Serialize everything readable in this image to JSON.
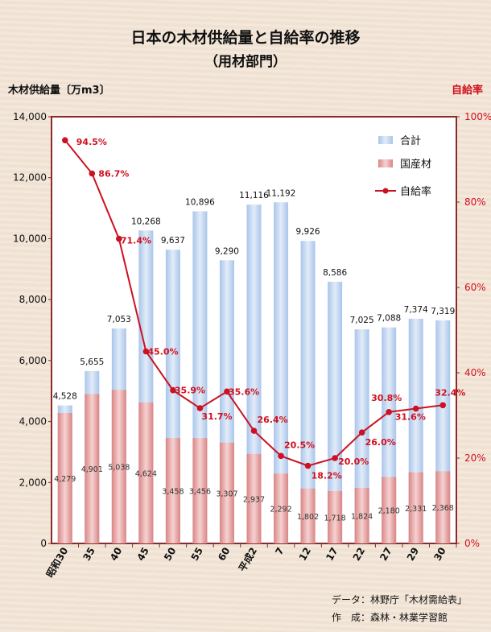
{
  "title_line1": "日本の木材供給量と自給率の推移",
  "title_line2": "（用材部門）",
  "left_axis_title": "木材供給量〔万m3〕",
  "right_axis_title": "自給率",
  "source_line1": "データ：林野庁「木材需給表」",
  "source_line2": "作　成：森林・林業学習館",
  "colors": {
    "total": "#bcd3ee",
    "domestic": "#e9a6a6",
    "rate": "#cc1122",
    "frame": "#8a2a2a"
  },
  "chart_data": {
    "type": "bar",
    "categories": [
      "昭和30",
      "35",
      "40",
      "45",
      "50",
      "55",
      "60",
      "平成2",
      "7",
      "12",
      "17",
      "22",
      "27",
      "29",
      "30"
    ],
    "series": [
      {
        "name": "合計",
        "values": [
          4528,
          5655,
          7053,
          10268,
          9637,
          10896,
          9290,
          11116,
          11192,
          9926,
          8586,
          7025,
          7088,
          7374,
          7319
        ]
      },
      {
        "name": "国産材",
        "values": [
          4279,
          4901,
          5038,
          4624,
          3458,
          3456,
          3307,
          2937,
          2292,
          1802,
          1718,
          1824,
          2180,
          2331,
          2368
        ]
      },
      {
        "name": "自給率",
        "type": "line",
        "axis": "right",
        "values": [
          94.5,
          86.7,
          71.4,
          45.0,
          35.9,
          31.7,
          35.6,
          26.4,
          20.5,
          18.2,
          20.0,
          26.0,
          30.8,
          31.6,
          32.4
        ]
      }
    ],
    "total_labels": [
      "4,528",
      "5,655",
      "7,053",
      "10,268",
      "9,637",
      "10,896",
      "9,290",
      "11,116",
      "11,192",
      "9,926",
      "8,586",
      "7,025",
      "7,088",
      "7,374",
      "7,319"
    ],
    "domestic_labels": [
      "4,279",
      "4,901",
      "5,038",
      "4,624",
      "3,458",
      "3,456",
      "3,307",
      "2,937",
      "2,292",
      "1,802",
      "1,718",
      "1,824",
      "2,180",
      "2,331",
      "2,368"
    ],
    "rate_labels": [
      "94.5%",
      "86.7%",
      "71.4%",
      "45.0%",
      "35.9%",
      "31.7%",
      "35.6%",
      "26.4%",
      "20.5%",
      "18.2%",
      "20.0%",
      "26.0%",
      "30.8%",
      "31.6%",
      "32.4%"
    ],
    "ylim": [
      0,
      14000
    ],
    "y_ticks": [
      "0",
      "2,000",
      "4,000",
      "6,000",
      "8,000",
      "10,000",
      "12,000",
      "14,000"
    ],
    "y2lim": [
      0,
      100
    ],
    "y2_ticks": [
      "0%",
      "20%",
      "40%",
      "60%",
      "80%",
      "100%"
    ],
    "legend": [
      "合計",
      "国産材",
      "自給率"
    ],
    "legend_position": "top-right",
    "grid": false
  }
}
